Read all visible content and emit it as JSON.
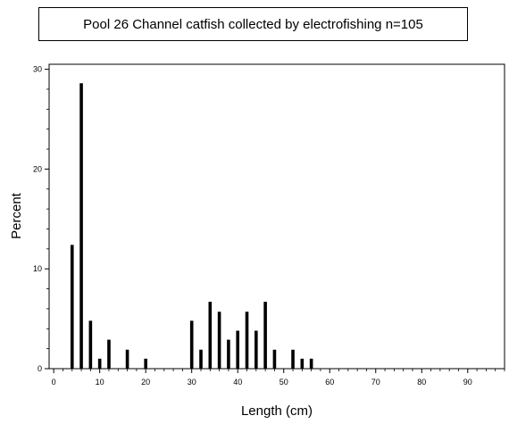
{
  "chart_data": {
    "type": "bar",
    "title": "Pool 26 Channel catfish collected by electrofishing n=105",
    "xlabel": "Length (cm)",
    "ylabel": "Percent",
    "xlim": [
      -1,
      98
    ],
    "ylim": [
      0,
      30.5
    ],
    "x_ticks": [
      0,
      10,
      20,
      30,
      40,
      50,
      60,
      70,
      80,
      90
    ],
    "y_ticks": [
      0,
      10,
      20,
      30
    ],
    "x": [
      4,
      6,
      8,
      10,
      12,
      16,
      20,
      30,
      32,
      34,
      36,
      38,
      40,
      42,
      44,
      46,
      48,
      52,
      54,
      56
    ],
    "values": [
      12.4,
      28.6,
      4.8,
      1.0,
      2.9,
      1.9,
      1.0,
      4.8,
      1.9,
      6.7,
      5.7,
      2.9,
      3.8,
      5.7,
      3.8,
      6.7,
      1.9,
      1.9,
      1.0,
      1.0
    ],
    "grid": false,
    "bar_color": "#000000"
  }
}
